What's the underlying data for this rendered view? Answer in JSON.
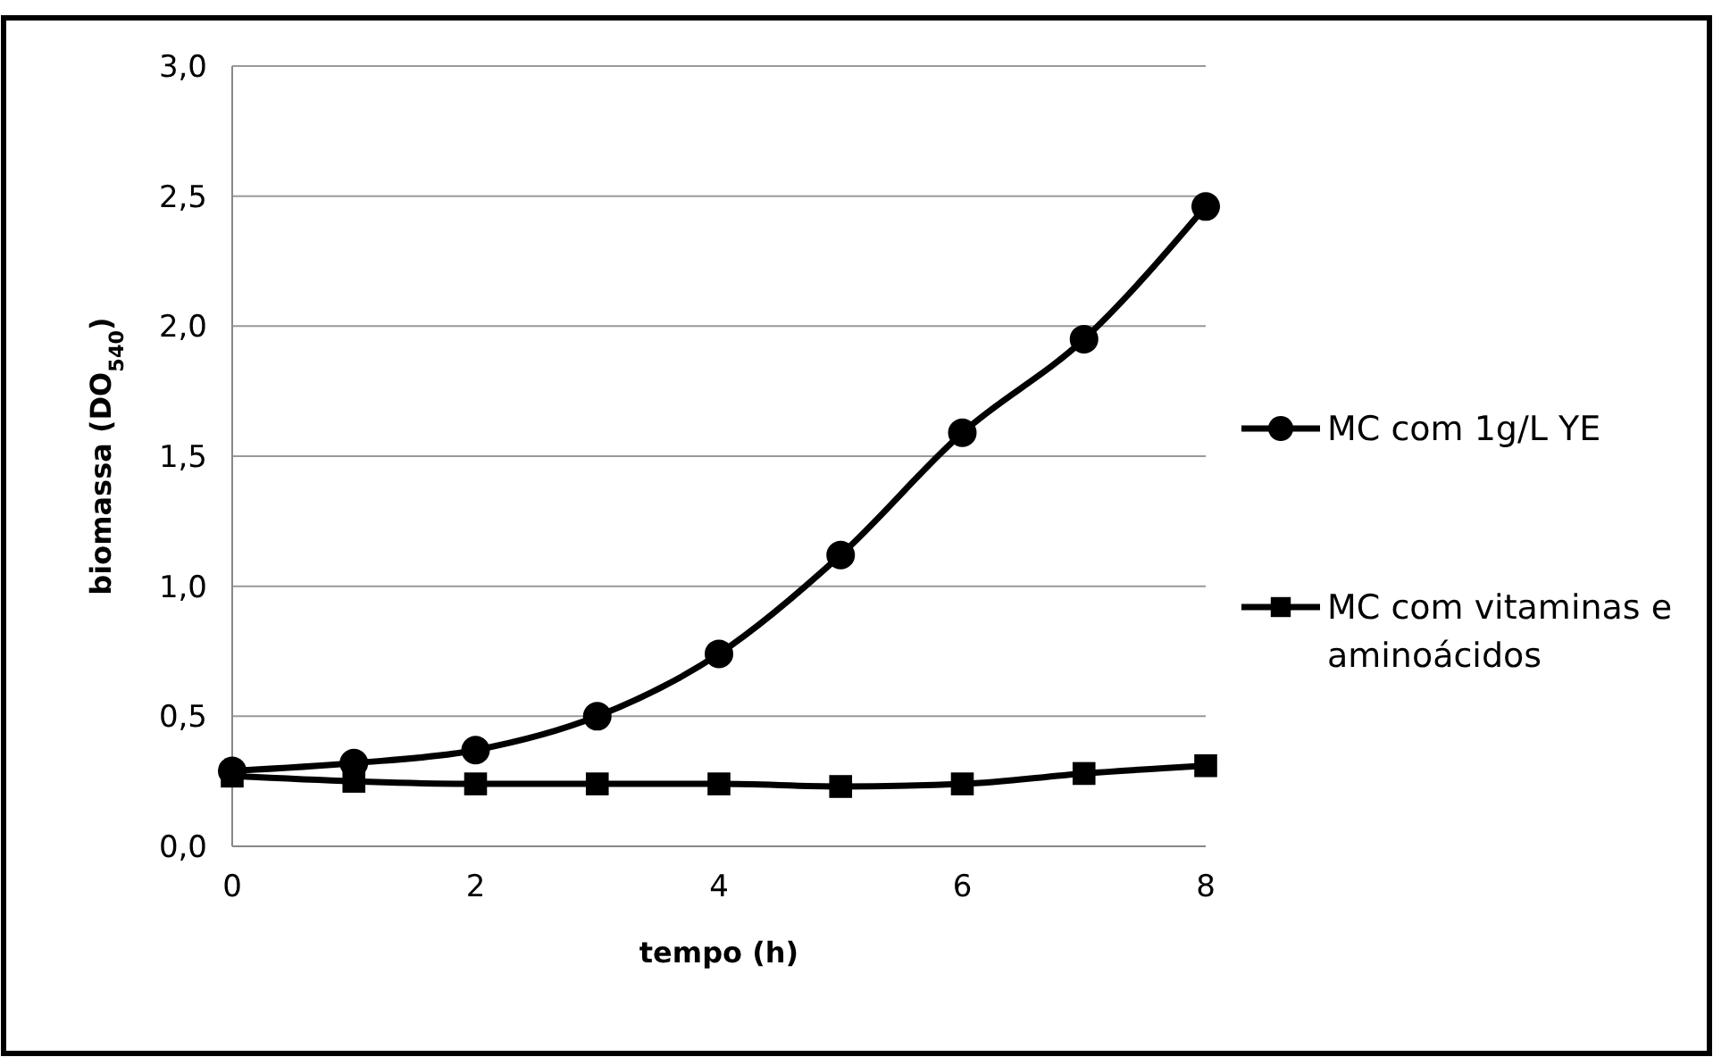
{
  "chart_data": {
    "type": "line",
    "xlabel": "tempo (h)",
    "ylabel": "biomassa (DO$_{540}$)",
    "x": [
      0,
      1,
      2,
      3,
      4,
      5,
      6,
      7,
      8
    ],
    "series": [
      {
        "name": "MC com 1g/L YE",
        "color": "#000000",
        "marker": "circle",
        "values": [
          0.29,
          0.32,
          0.37,
          0.5,
          0.74,
          1.12,
          1.59,
          1.95,
          2.46
        ]
      },
      {
        "name": "MC com vitaminas e aminoácidos",
        "color": "#000000",
        "marker": "square",
        "values": [
          0.27,
          0.25,
          0.24,
          0.24,
          0.24,
          0.23,
          0.24,
          0.28,
          0.31
        ]
      }
    ],
    "xlim": [
      0,
      8
    ],
    "xticks": [
      0,
      2,
      4,
      6,
      8
    ],
    "ylim": [
      0,
      3
    ],
    "yticks": [
      {
        "value": 0,
        "label": "0,0"
      },
      {
        "value": 0.5,
        "label": "0,5"
      },
      {
        "value": 1,
        "label": "1,0"
      },
      {
        "value": 1.5,
        "label": "1,5"
      },
      {
        "value": 2,
        "label": "2,0"
      },
      {
        "value": 2.5,
        "label": "2,5"
      },
      {
        "value": 3,
        "label": "3,0"
      }
    ],
    "grid": "y",
    "legend": "right",
    "line_style": "solid"
  }
}
